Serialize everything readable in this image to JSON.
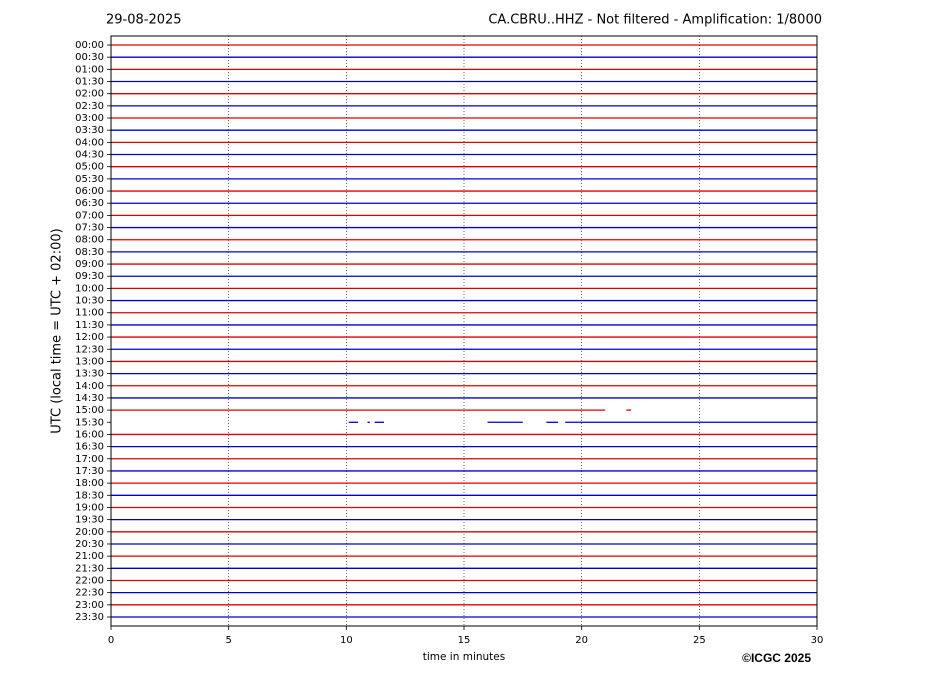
{
  "chart_data": {
    "type": "helicorder",
    "title_left": "29-08-2025",
    "title_right": "CA.CBRU..HHZ - Not filtered - Amplification: 1/8000",
    "xlabel": "time in minutes",
    "ylabel": "UTC (local time = UTC + 02:00)",
    "credit": "©ICGC 2025",
    "categories": [
      "00:00",
      "00:30",
      "01:00",
      "01:30",
      "02:00",
      "02:30",
      "03:00",
      "03:30",
      "04:00",
      "04:30",
      "05:00",
      "05:30",
      "06:00",
      "06:30",
      "07:00",
      "07:30",
      "08:00",
      "08:30",
      "09:00",
      "09:30",
      "10:00",
      "10:30",
      "11:00",
      "11:30",
      "12:00",
      "12:30",
      "13:00",
      "13:30",
      "14:00",
      "14:30",
      "15:00",
      "15:30",
      "16:00",
      "16:30",
      "17:00",
      "17:30",
      "18:00",
      "18:30",
      "19:00",
      "19:30",
      "20:00",
      "20:30",
      "21:00",
      "21:30",
      "22:00",
      "22:30",
      "23:00",
      "23:30"
    ],
    "trace_colors": [
      "#e00000",
      "#0000c8"
    ],
    "segments": [
      [
        [
          0,
          30
        ]
      ],
      [
        [
          0,
          30
        ]
      ],
      [
        [
          0,
          30
        ]
      ],
      [
        [
          0,
          30
        ]
      ],
      [
        [
          0,
          30
        ]
      ],
      [
        [
          0,
          30
        ]
      ],
      [
        [
          0,
          30
        ]
      ],
      [
        [
          0,
          30
        ]
      ],
      [
        [
          0,
          30
        ]
      ],
      [
        [
          0,
          30
        ]
      ],
      [
        [
          0,
          30
        ]
      ],
      [
        [
          0,
          30
        ]
      ],
      [
        [
          0,
          30
        ]
      ],
      [
        [
          0,
          30
        ]
      ],
      [
        [
          0,
          30
        ]
      ],
      [
        [
          0,
          30
        ]
      ],
      [
        [
          0,
          30
        ]
      ],
      [
        [
          0,
          30
        ]
      ],
      [
        [
          0,
          30
        ]
      ],
      [
        [
          0,
          30
        ]
      ],
      [
        [
          0,
          30
        ]
      ],
      [
        [
          0,
          30
        ]
      ],
      [
        [
          0,
          30
        ]
      ],
      [
        [
          0,
          30
        ]
      ],
      [
        [
          0,
          30
        ]
      ],
      [
        [
          0,
          30
        ]
      ],
      [
        [
          0,
          30
        ]
      ],
      [
        [
          0,
          30
        ]
      ],
      [
        [
          0,
          30
        ]
      ],
      [
        [
          0,
          30
        ]
      ],
      [
        [
          0,
          21
        ],
        [
          21.9,
          22.1
        ]
      ],
      [
        [
          10.1,
          10.5
        ],
        [
          10.9,
          11
        ],
        [
          11.2,
          11.6
        ],
        [
          16,
          17.5
        ],
        [
          18.5,
          19
        ],
        [
          19.3,
          30
        ]
      ],
      [
        [
          0,
          30
        ]
      ],
      [
        [
          0,
          30
        ]
      ],
      [
        [
          0,
          30
        ]
      ],
      [
        [
          0,
          30
        ]
      ],
      [
        [
          0,
          30
        ]
      ],
      [
        [
          0,
          30
        ]
      ],
      [
        [
          0,
          30
        ]
      ],
      [
        [
          0,
          30
        ]
      ],
      [
        [
          0,
          30
        ]
      ],
      [
        [
          0,
          30
        ]
      ],
      [
        [
          0,
          30
        ]
      ],
      [
        [
          0,
          30
        ]
      ],
      [
        [
          0,
          30
        ]
      ],
      [
        [
          0,
          30
        ]
      ],
      [
        [
          0,
          30
        ]
      ],
      [
        [
          0,
          30
        ]
      ]
    ],
    "xlim": [
      0,
      30
    ],
    "xticks": [
      0,
      5,
      10,
      15,
      20,
      25,
      30
    ],
    "grid": true
  }
}
